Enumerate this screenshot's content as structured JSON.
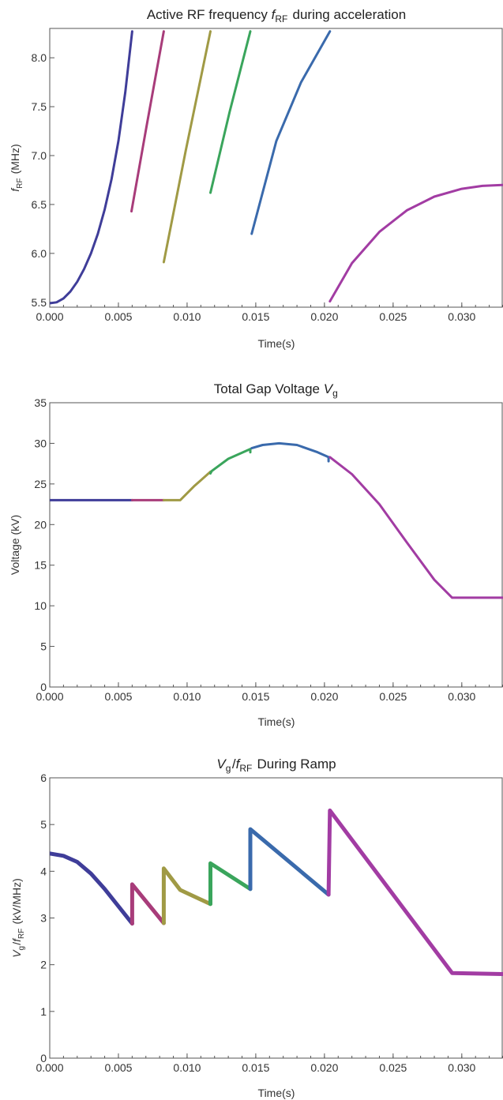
{
  "chart_data": [
    {
      "type": "line",
      "title": "Active RF frequency f_RF during acceleration",
      "title_parts": {
        "pre": "Active RF frequency ",
        "sym": "f",
        "sub": "RF",
        "post": " during acceleration"
      },
      "xlabel": "Time(s)",
      "ylabel_parts": {
        "sym": "f",
        "sub": "RF",
        "post": " (MHz)"
      },
      "xlim": [
        0,
        0.033
      ],
      "ylim": [
        5.45,
        8.3
      ],
      "xticks": [
        0,
        0.005,
        0.01,
        0.015,
        0.02,
        0.025,
        0.03
      ],
      "xtick_labels": [
        "0.000",
        "0.005",
        "0.010",
        "0.015",
        "0.020",
        "0.025",
        "0.030"
      ],
      "yticks": [
        5.5,
        6.0,
        6.5,
        7.0,
        7.5,
        8.0
      ],
      "ytick_labels": [
        "5.5",
        "6.0",
        "6.5",
        "7.0",
        "7.5",
        "8.0"
      ],
      "stroke_width": 3,
      "series": [
        {
          "color": "#3f3d99",
          "points": [
            [
              0.0,
              5.49
            ],
            [
              0.0005,
              5.5
            ],
            [
              0.001,
              5.54
            ],
            [
              0.0015,
              5.61
            ],
            [
              0.002,
              5.71
            ],
            [
              0.0025,
              5.84
            ],
            [
              0.003,
              6.0
            ],
            [
              0.0035,
              6.2
            ],
            [
              0.004,
              6.45
            ],
            [
              0.0045,
              6.76
            ],
            [
              0.005,
              7.15
            ],
            [
              0.0055,
              7.65
            ],
            [
              0.006,
              8.27
            ]
          ]
        },
        {
          "color": "#a83c7a",
          "points": [
            [
              0.00595,
              6.43
            ],
            [
              0.00705,
              7.3
            ],
            [
              0.0083,
              8.27
            ]
          ]
        },
        {
          "color": "#a09a45",
          "points": [
            [
              0.0083,
              5.91
            ],
            [
              0.0099,
              7.05
            ],
            [
              0.0117,
              8.27
            ]
          ]
        },
        {
          "color": "#3aa55c",
          "points": [
            [
              0.0117,
              6.62
            ],
            [
              0.0131,
              7.45
            ],
            [
              0.0146,
              8.27
            ]
          ]
        },
        {
          "color": "#3a6aac",
          "points": [
            [
              0.0147,
              6.2
            ],
            [
              0.0165,
              7.15
            ],
            [
              0.0183,
              7.75
            ],
            [
              0.0204,
              8.27
            ]
          ]
        },
        {
          "color": "#a23ca3",
          "points": [
            [
              0.0204,
              5.51
            ],
            [
              0.022,
              5.9
            ],
            [
              0.024,
              6.22
            ],
            [
              0.026,
              6.44
            ],
            [
              0.028,
              6.58
            ],
            [
              0.03,
              6.66
            ],
            [
              0.0315,
              6.69
            ],
            [
              0.033,
              6.7
            ]
          ]
        }
      ]
    },
    {
      "type": "line",
      "title": "Total Gap Voltage V_g",
      "title_parts": {
        "pre": "Total Gap Voltage ",
        "sym": "V",
        "sub": "g",
        "post": ""
      },
      "xlabel": "Time(s)",
      "ylabel": "Voltage (kV)",
      "xlim": [
        0,
        0.033
      ],
      "ylim": [
        0,
        35
      ],
      "xticks": [
        0,
        0.005,
        0.01,
        0.015,
        0.02,
        0.025,
        0.03
      ],
      "xtick_labels": [
        "0.000",
        "0.005",
        "0.010",
        "0.015",
        "0.020",
        "0.025",
        "0.030"
      ],
      "yticks": [
        0,
        5,
        10,
        15,
        20,
        25,
        30,
        35
      ],
      "ytick_labels": [
        "0",
        "5",
        "10",
        "15",
        "20",
        "25",
        "30",
        "35"
      ],
      "stroke_width": 3,
      "series": [
        {
          "color": "#3f3d99",
          "points": [
            [
              0.0,
              23.0
            ],
            [
              0.006,
              23.0
            ]
          ]
        },
        {
          "color": "#a83c7a",
          "points": [
            [
              0.006,
              23.0
            ],
            [
              0.0083,
              23.0
            ]
          ]
        },
        {
          "color": "#a09a45",
          "points": [
            [
              0.0083,
              23.0
            ],
            [
              0.0095,
              23.0
            ],
            [
              0.0105,
              24.7
            ],
            [
              0.0117,
              26.5
            ]
          ]
        },
        {
          "color": "#3aa55c",
          "points": [
            [
              0.0117,
              26.3
            ],
            [
              0.0118,
              26.6
            ],
            [
              0.013,
              28.1
            ],
            [
              0.0146,
              29.3
            ],
            [
              0.0146,
              28.9
            ]
          ]
        },
        {
          "color": "#3a6aac",
          "points": [
            [
              0.0147,
              29.4
            ],
            [
              0.0155,
              29.8
            ],
            [
              0.0167,
              30.0
            ],
            [
              0.018,
              29.8
            ],
            [
              0.0195,
              28.9
            ],
            [
              0.0203,
              28.3
            ],
            [
              0.0203,
              27.8
            ]
          ]
        },
        {
          "color": "#a23ca3",
          "points": [
            [
              0.0204,
              28.3
            ],
            [
              0.022,
              26.2
            ],
            [
              0.024,
              22.5
            ],
            [
              0.026,
              17.8
            ],
            [
              0.028,
              13.2
            ],
            [
              0.0293,
              11.0
            ],
            [
              0.033,
              11.0
            ]
          ]
        }
      ]
    },
    {
      "type": "line",
      "title": "V_g/f_RF During Ramp",
      "title_parts": {
        "pre": "",
        "sym": "V",
        "sub": "g",
        "mid": "/",
        "sym2": "f",
        "sub2": "RF",
        "post": " During Ramp"
      },
      "xlabel": "Time(s)",
      "ylabel_parts": {
        "sym": "V",
        "sub": "g",
        "mid": "/",
        "sym2": "f",
        "sub2": "RF",
        "post": " (kV/MHz)"
      },
      "xlim": [
        0,
        0.033
      ],
      "ylim": [
        0,
        6
      ],
      "xticks": [
        0,
        0.005,
        0.01,
        0.015,
        0.02,
        0.025,
        0.03
      ],
      "xtick_labels": [
        "0.000",
        "0.005",
        "0.010",
        "0.015",
        "0.020",
        "0.025",
        "0.030"
      ],
      "yticks": [
        0,
        1,
        2,
        3,
        4,
        5,
        6
      ],
      "ytick_labels": [
        "0",
        "1",
        "2",
        "3",
        "4",
        "5",
        "6"
      ],
      "stroke_width": 5,
      "series": [
        {
          "color": "#3f3d99",
          "points": [
            [
              0.0,
              4.38
            ],
            [
              0.001,
              4.33
            ],
            [
              0.002,
              4.2
            ],
            [
              0.003,
              3.95
            ],
            [
              0.004,
              3.62
            ],
            [
              0.005,
              3.25
            ],
            [
              0.006,
              2.88
            ]
          ]
        },
        {
          "color": "#a83c7a",
          "points": [
            [
              0.006,
              2.88
            ],
            [
              0.006,
              3.72
            ],
            [
              0.0083,
              2.89
            ]
          ]
        },
        {
          "color": "#a09a45",
          "points": [
            [
              0.0083,
              2.89
            ],
            [
              0.0083,
              4.06
            ],
            [
              0.0095,
              3.6
            ],
            [
              0.0117,
              3.3
            ]
          ]
        },
        {
          "color": "#3aa55c",
          "points": [
            [
              0.0117,
              3.3
            ],
            [
              0.0117,
              4.17
            ],
            [
              0.0146,
              3.62
            ]
          ]
        },
        {
          "color": "#3a6aac",
          "points": [
            [
              0.0146,
              3.62
            ],
            [
              0.0146,
              4.9
            ],
            [
              0.0203,
              3.5
            ]
          ]
        },
        {
          "color": "#a23ca3",
          "points": [
            [
              0.0203,
              3.5
            ],
            [
              0.0204,
              5.3
            ],
            [
              0.0293,
              1.82
            ],
            [
              0.033,
              1.8
            ]
          ]
        }
      ]
    }
  ]
}
